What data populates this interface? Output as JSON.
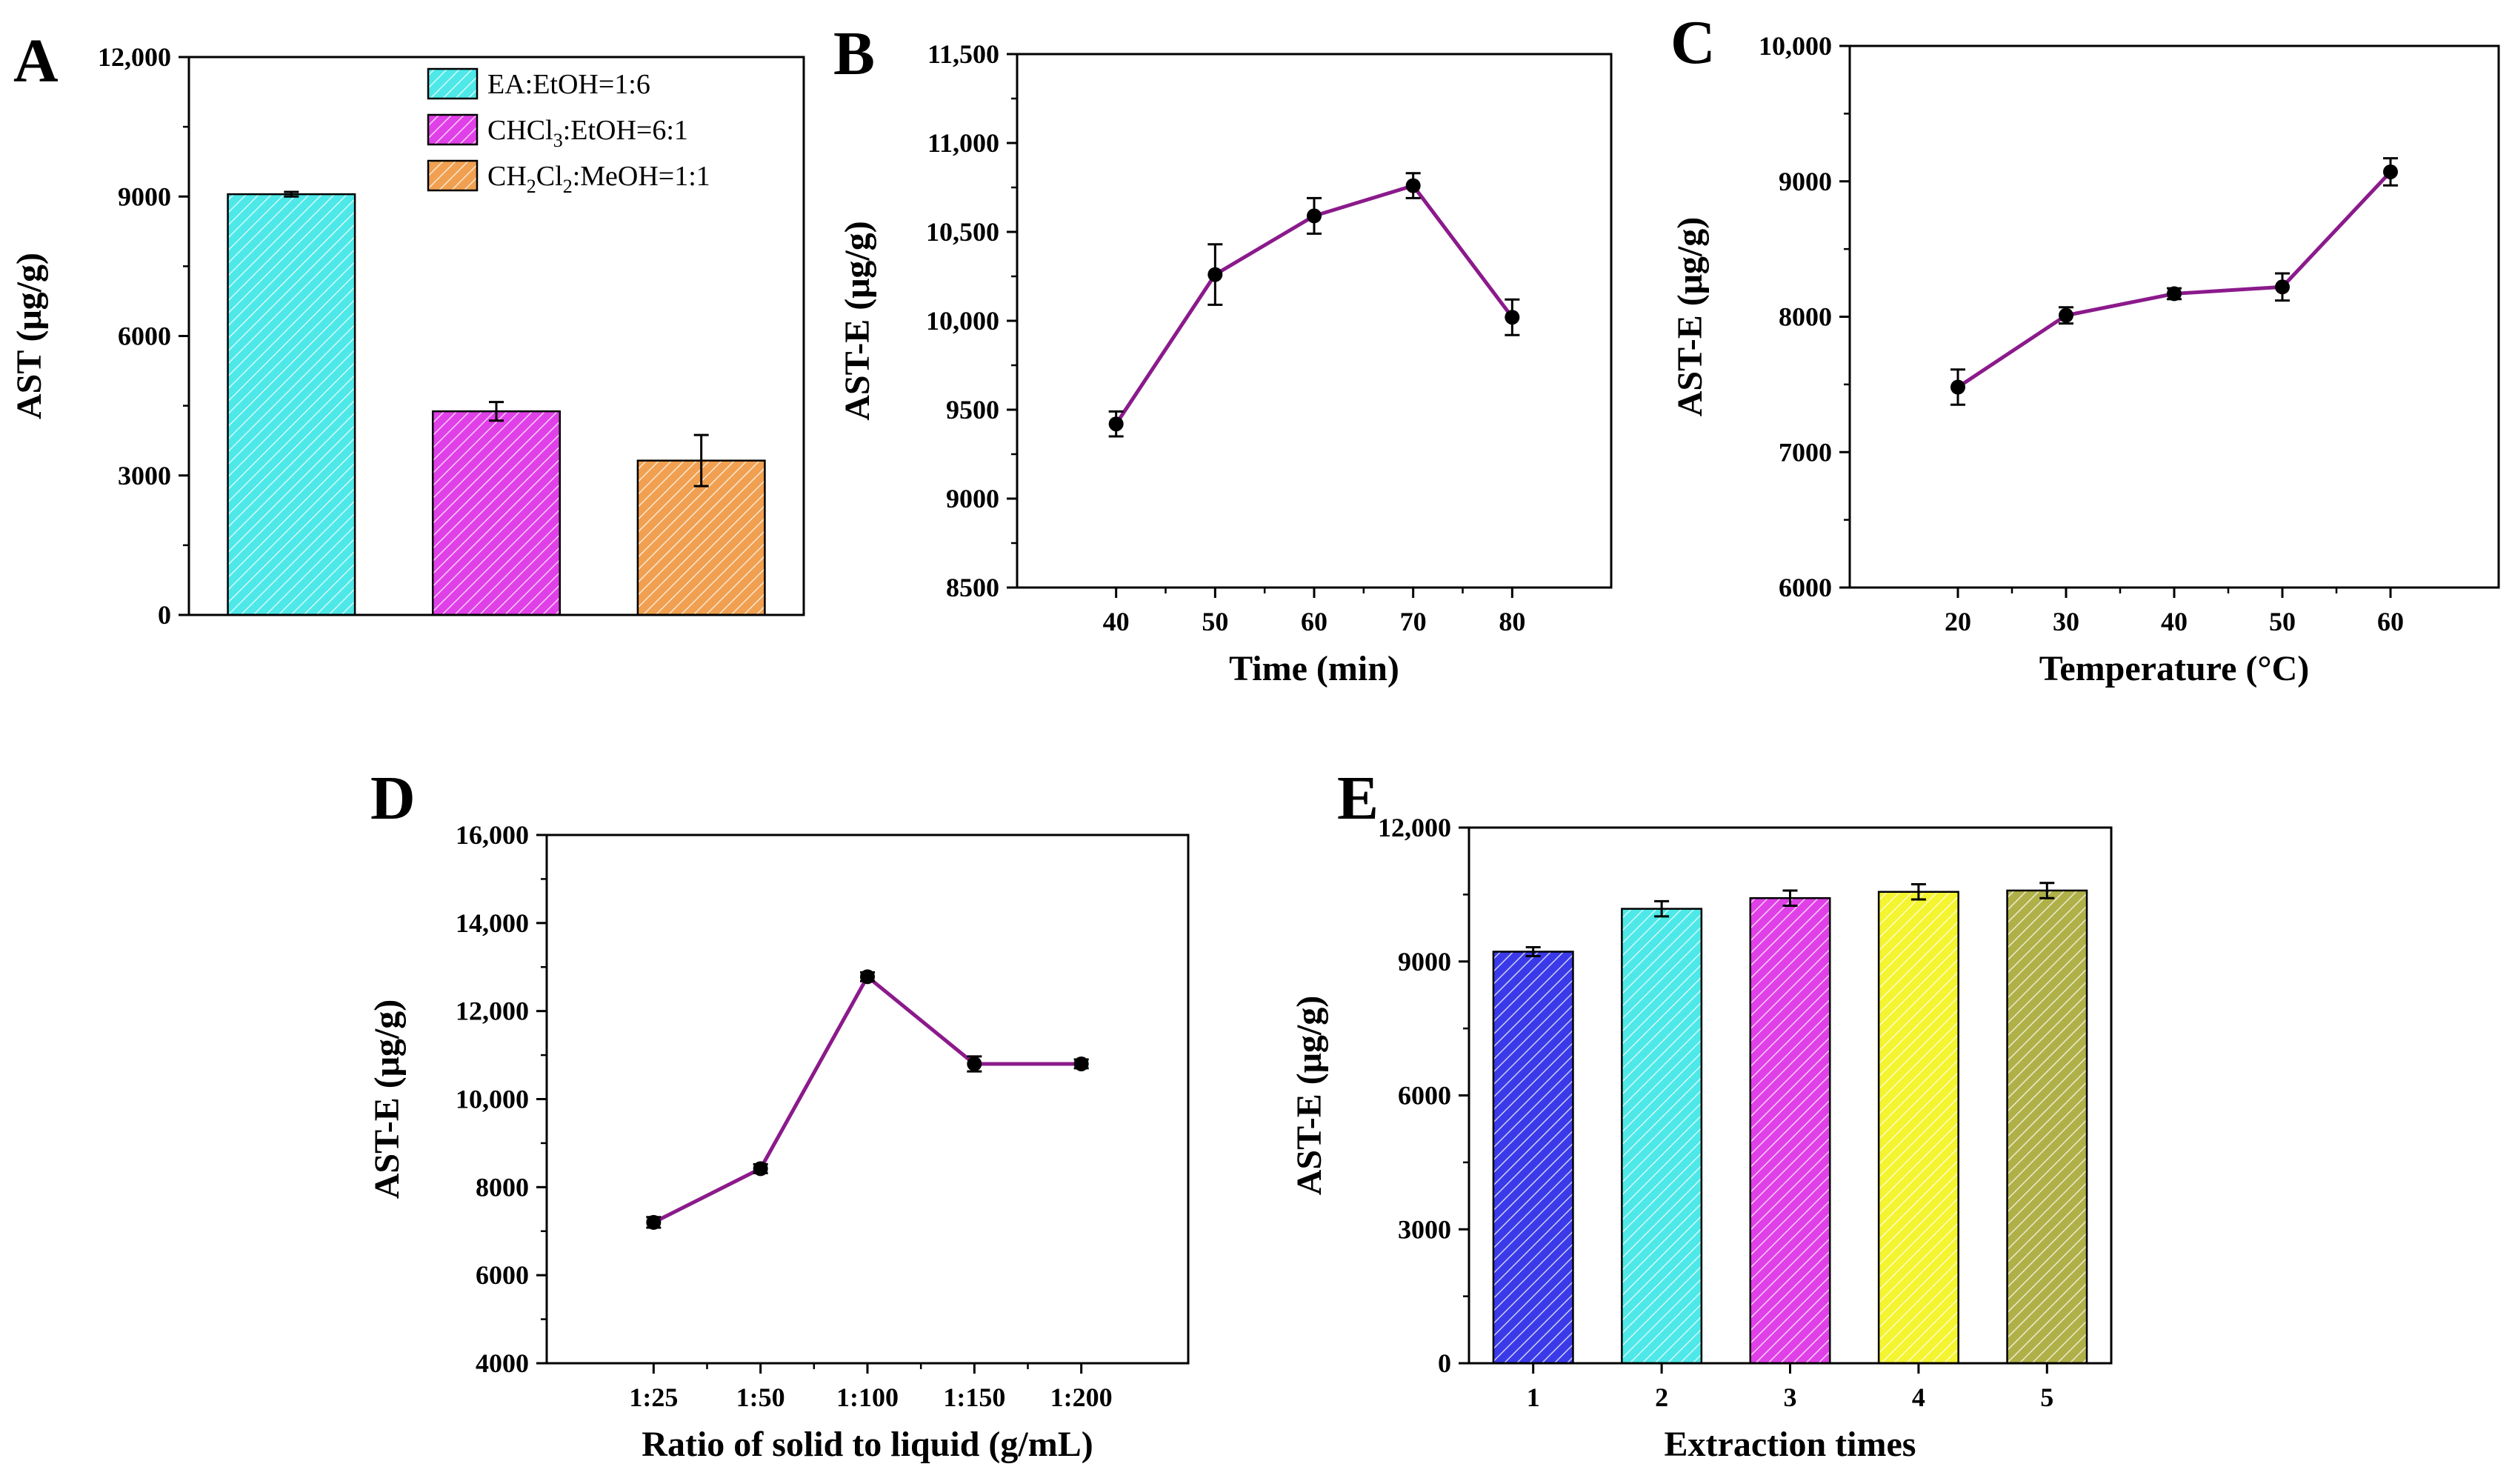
{
  "colors": {
    "line": "#8b1a8b",
    "marker": "#000000",
    "cyan": "#4ee8e8",
    "magenta": "#e040e8",
    "orange": "#f0a050",
    "blue": "#3a3ae8",
    "yellow": "#f4f430",
    "olive": "#b0b048"
  },
  "chart_data": [
    {
      "id": "A",
      "type": "bar",
      "panel_label": "A",
      "ylabel": "AST (μg/g)",
      "xlabel": "",
      "ylim": [
        0,
        12000
      ],
      "yticks": [
        0,
        3000,
        6000,
        9000,
        12000
      ],
      "ytick_labels": [
        "0",
        "3000",
        "6000",
        "9000",
        "12,000"
      ],
      "categories": [
        "EA:EtOH=1:6",
        "CHCl3:EtOH=6:1",
        "CH2Cl2:MeOH=1:1"
      ],
      "values": [
        9050,
        4380,
        3320
      ],
      "errors": [
        50,
        200,
        550
      ],
      "bar_colors": [
        "cyan",
        "magenta",
        "orange"
      ],
      "legend": [
        {
          "pre": "EA:EtOH=1:6",
          "sub": "",
          "post": ""
        },
        {
          "pre": "CHCl",
          "sub": "3",
          "post": ":EtOH=6:1"
        },
        {
          "pre": "CH",
          "sub": "2",
          "mid": "Cl",
          "sub2": "2",
          "post": ":MeOH=1:1"
        }
      ]
    },
    {
      "id": "B",
      "type": "line",
      "panel_label": "B",
      "ylabel": "AST-E (μg/g)",
      "xlabel": "Time (min)",
      "ylim": [
        8500,
        11500
      ],
      "yticks": [
        8500,
        9000,
        9500,
        10000,
        10500,
        11000,
        11500
      ],
      "ytick_labels": [
        "8500",
        "9000",
        "9500",
        "10,000",
        "10,500",
        "11,000",
        "11,500"
      ],
      "x": [
        40,
        50,
        60,
        70,
        80
      ],
      "xtick_labels": [
        "40",
        "50",
        "60",
        "70",
        "80"
      ],
      "values": [
        9420,
        10260,
        10590,
        10760,
        10020
      ],
      "errors": [
        70,
        170,
        100,
        70,
        100
      ]
    },
    {
      "id": "C",
      "type": "line",
      "panel_label": "C",
      "ylabel": "AST-E (μg/g)",
      "xlabel": "Temperature (°C)",
      "ylim": [
        6000,
        10000
      ],
      "yticks": [
        6000,
        7000,
        8000,
        9000,
        10000
      ],
      "ytick_labels": [
        "6000",
        "7000",
        "8000",
        "9000",
        "10,000"
      ],
      "x": [
        20,
        30,
        40,
        50,
        60
      ],
      "xtick_labels": [
        "20",
        "30",
        "40",
        "50",
        "60"
      ],
      "values": [
        7480,
        8010,
        8170,
        8220,
        9070
      ],
      "errors": [
        130,
        60,
        40,
        100,
        100
      ]
    },
    {
      "id": "D",
      "type": "line",
      "panel_label": "D",
      "ylabel": "AST-E (μg/g)",
      "xlabel": "Ratio of solid to liquid (g/mL)",
      "ylim": [
        4000,
        16000
      ],
      "yticks": [
        4000,
        6000,
        8000,
        10000,
        12000,
        14000,
        16000
      ],
      "ytick_labels": [
        "4000",
        "6000",
        "8000",
        "10,000",
        "12,000",
        "14,000",
        "16,000"
      ],
      "x": [
        1,
        2,
        3,
        4,
        5
      ],
      "xtick_labels": [
        "1:25",
        "1:50",
        "1:100",
        "1:150",
        "1:200"
      ],
      "values": [
        7200,
        8420,
        12780,
        10800,
        10800
      ],
      "errors": [
        120,
        100,
        100,
        170,
        100
      ]
    },
    {
      "id": "E",
      "type": "bar",
      "panel_label": "E",
      "ylabel": "AST-E (μg/g)",
      "xlabel": "Extraction times",
      "ylim": [
        0,
        12000
      ],
      "yticks": [
        0,
        3000,
        6000,
        9000,
        12000
      ],
      "ytick_labels": [
        "0",
        "3000",
        "6000",
        "9000",
        "12,000"
      ],
      "categories": [
        "1",
        "2",
        "3",
        "4",
        "5"
      ],
      "values": [
        9220,
        10180,
        10420,
        10560,
        10590
      ],
      "errors": [
        100,
        170,
        170,
        170,
        170
      ],
      "bar_colors": [
        "blue",
        "cyan",
        "magenta",
        "yellow",
        "olive"
      ]
    }
  ]
}
